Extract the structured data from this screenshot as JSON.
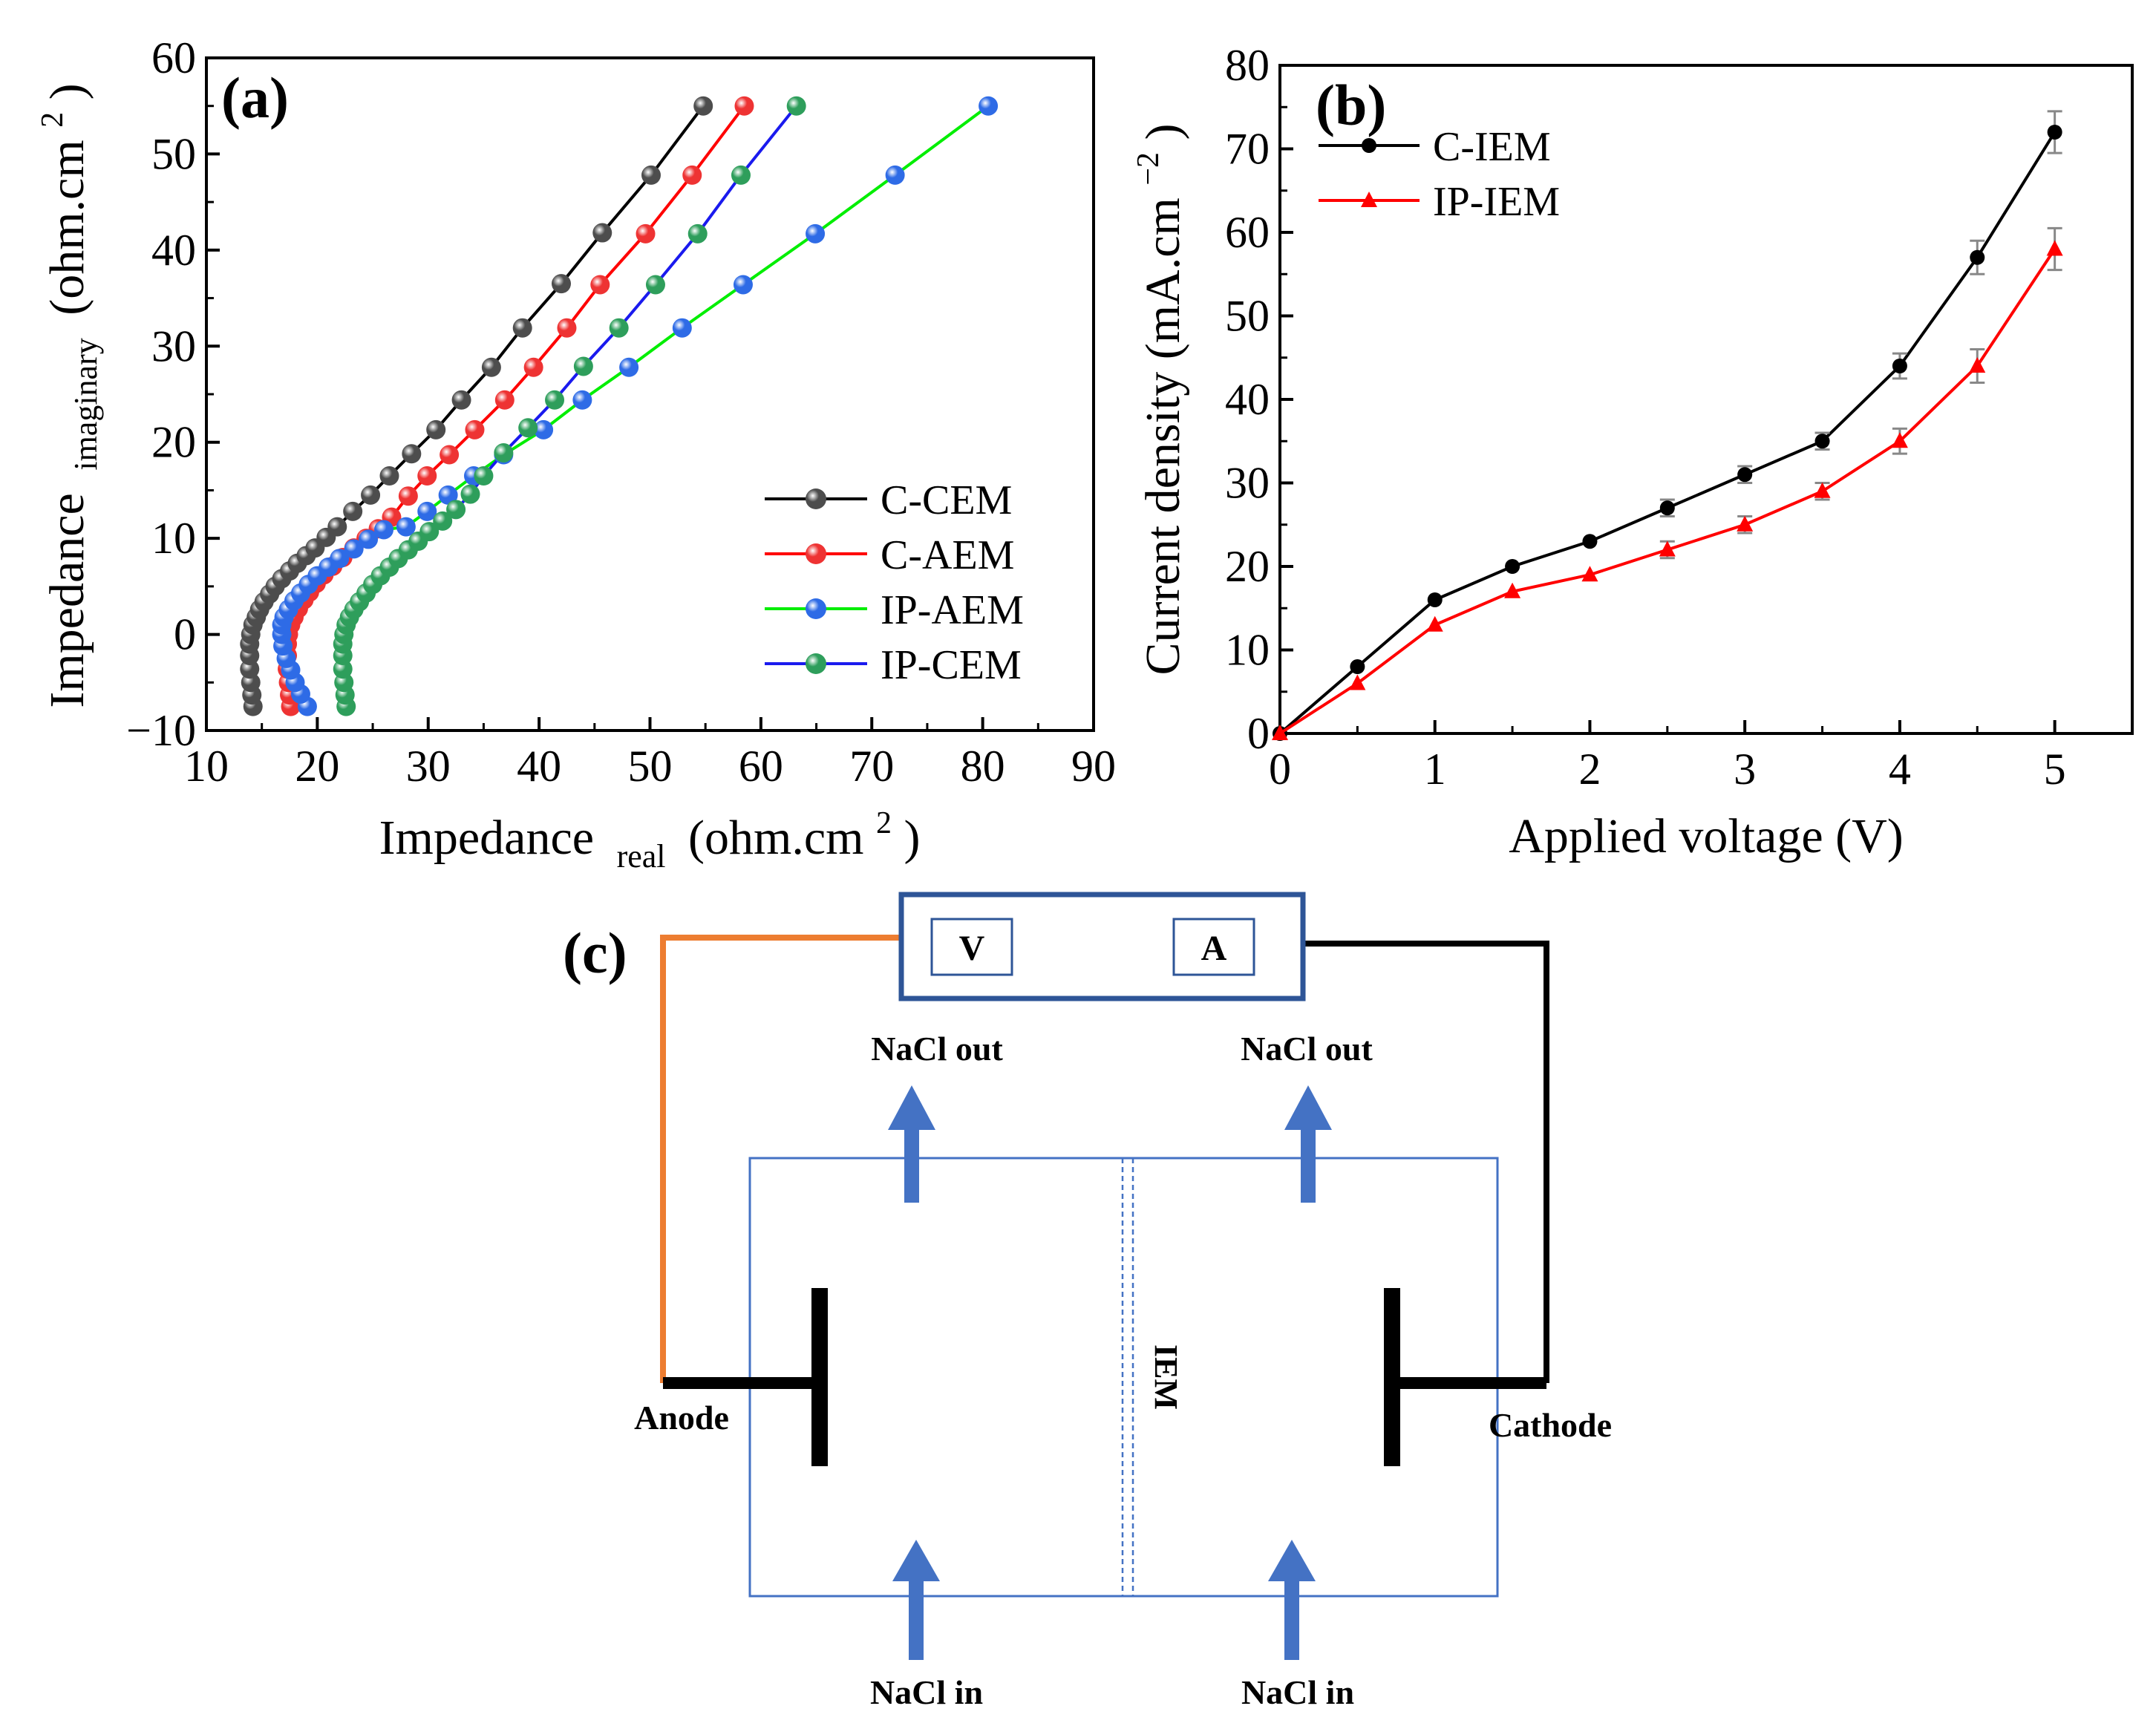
{
  "chart_data": [
    {
      "panel": "(a)",
      "type": "scatter",
      "mode": "lines+markers",
      "xlabel_main": "Impedance",
      "xlabel_sub": "real",
      "xlabel_unit": "(ohm.cm",
      "xlabel_sup": "2",
      "xlabel_close": ")",
      "ylabel_main": "Impedance",
      "ylabel_sub": "imaginary",
      "ylabel_unit": "(ohm.cm",
      "ylabel_sup": "2",
      "ylabel_close": ")",
      "xlim": [
        10,
        90
      ],
      "ylim": [
        -10,
        60
      ],
      "xticks": [
        10,
        20,
        30,
        40,
        50,
        60,
        70,
        80,
        90
      ],
      "yticks": [
        -10,
        0,
        10,
        20,
        30,
        40,
        50,
        60
      ],
      "legend": "center-right",
      "series": [
        {
          "name": "C-CEM",
          "line": "#000000",
          "marker": "#4d4d4d",
          "x": [
            14.2,
            14.1,
            14.0,
            13.9,
            13.9,
            13.9,
            14.0,
            14.2,
            14.5,
            14.8,
            15.2,
            15.7,
            16.2,
            16.8,
            17.5,
            18.2,
            19.0,
            19.8,
            20.8,
            21.8,
            23.2,
            24.8,
            26.5,
            28.5,
            30.7,
            33.0,
            35.7,
            38.5,
            42.0,
            45.7,
            50.1,
            54.8
          ],
          "y": [
            -7.5,
            -6.3,
            -5.0,
            -3.6,
            -2.2,
            -1.0,
            0.0,
            1.0,
            1.8,
            2.6,
            3.4,
            4.2,
            5.0,
            5.8,
            6.6,
            7.4,
            8.2,
            9.0,
            10.1,
            11.2,
            12.8,
            14.5,
            16.5,
            18.8,
            21.3,
            24.4,
            27.8,
            31.9,
            36.5,
            41.8,
            47.8,
            55.0
          ]
        },
        {
          "name": "C-AEM",
          "line": "#ff0000",
          "marker": "#ee3333",
          "x": [
            17.6,
            17.5,
            17.4,
            17.3,
            17.3,
            17.3,
            17.4,
            17.6,
            17.9,
            18.3,
            18.8,
            19.3,
            19.9,
            20.6,
            21.4,
            22.3,
            23.3,
            24.4,
            25.5,
            26.7,
            28.2,
            29.9,
            31.9,
            34.2,
            36.9,
            39.5,
            42.5,
            45.5,
            49.6,
            53.8,
            58.5
          ],
          "y": [
            -7.5,
            -6.3,
            -5.0,
            -3.6,
            -2.2,
            -1.0,
            0.0,
            1.0,
            1.8,
            2.7,
            3.6,
            4.4,
            5.3,
            6.2,
            7.1,
            8.0,
            9.0,
            10.0,
            11.0,
            12.2,
            14.4,
            16.5,
            18.7,
            21.3,
            24.4,
            27.8,
            31.9,
            36.4,
            41.7,
            47.8,
            55.0
          ]
        },
        {
          "name": "IP-AEM",
          "line": "#00ee00",
          "marker": "#2e6be6",
          "x": [
            19.1,
            18.5,
            18.0,
            17.6,
            17.2,
            16.9,
            16.8,
            16.8,
            17.0,
            17.4,
            17.9,
            18.5,
            19.2,
            20.0,
            21.0,
            22.0,
            23.3,
            24.6,
            26.0,
            28.0,
            29.9,
            31.8,
            34.1,
            36.8,
            40.4,
            43.9,
            48.1,
            52.9,
            58.4,
            64.9,
            72.1,
            80.5
          ],
          "y": [
            -7.5,
            -6.2,
            -5.0,
            -3.7,
            -2.5,
            -1.2,
            0.0,
            1.0,
            1.8,
            2.6,
            3.5,
            4.3,
            5.2,
            6.1,
            7.0,
            7.9,
            8.9,
            9.9,
            10.9,
            11.2,
            12.8,
            14.5,
            16.5,
            18.7,
            21.3,
            24.4,
            27.8,
            31.9,
            36.4,
            41.7,
            47.8,
            55.0
          ]
        },
        {
          "name": "IP-CEM",
          "line": "#1a1aee",
          "marker": "#2e9e5b",
          "x": [
            22.6,
            22.5,
            22.4,
            22.3,
            22.3,
            22.3,
            22.4,
            22.6,
            22.9,
            23.3,
            23.8,
            24.4,
            25.0,
            25.7,
            26.5,
            27.3,
            28.2,
            29.1,
            30.1,
            31.3,
            32.5,
            33.8,
            35.0,
            36.8,
            39.0,
            41.4,
            44.0,
            47.2,
            50.5,
            54.3,
            58.2,
            63.2
          ],
          "y": [
            -7.5,
            -6.3,
            -5.0,
            -3.6,
            -2.2,
            -1.0,
            0.0,
            1.0,
            1.8,
            2.6,
            3.4,
            4.3,
            5.2,
            6.1,
            7.0,
            7.9,
            8.8,
            9.7,
            10.7,
            11.8,
            13.0,
            14.6,
            16.5,
            18.9,
            21.5,
            24.4,
            27.9,
            31.9,
            36.4,
            41.7,
            47.8,
            55.0
          ]
        }
      ]
    },
    {
      "panel": "(b)",
      "type": "line",
      "xlabel": "Applied voltage (V)",
      "ylabel_main": "Current density (mA.cm",
      "ylabel_sup": "−2",
      "ylabel_close": ")",
      "xlim": [
        0,
        5.5
      ],
      "ylim": [
        0,
        80
      ],
      "xticks": [
        0,
        1,
        2,
        3,
        4,
        5
      ],
      "yticks": [
        0,
        10,
        20,
        30,
        40,
        50,
        60,
        70,
        80
      ],
      "legend": "top-left",
      "series": [
        {
          "name": "C-IEM",
          "color": "#000000",
          "marker": "circle",
          "x": [
            0,
            0.5,
            1,
            1.5,
            2,
            2.5,
            3,
            3.5,
            4,
            4.5,
            5
          ],
          "y": [
            0,
            8,
            16,
            20,
            23,
            27,
            31,
            35,
            44,
            57,
            72
          ],
          "err": [
            0,
            0,
            0,
            0,
            0,
            1.0,
            1.0,
            1.0,
            1.5,
            2.0,
            2.5
          ]
        },
        {
          "name": "IP-IEM",
          "color": "#ff0000",
          "marker": "triangle",
          "x": [
            0,
            0.5,
            1,
            1.5,
            2,
            2.5,
            3,
            3.5,
            4,
            4.5,
            5
          ],
          "y": [
            0,
            6,
            13,
            17,
            19,
            22,
            25,
            29,
            35,
            44,
            58
          ],
          "err": [
            0,
            0,
            0,
            0,
            0,
            1.0,
            1.0,
            1.0,
            1.5,
            2.0,
            2.5
          ]
        }
      ]
    }
  ],
  "diagram": {
    "panel": "(c)",
    "meter_v": "V",
    "meter_a": "A",
    "nacl_out": "NaCl out",
    "nacl_in": "NaCl in",
    "anode": "Anode",
    "cathode": "Cathode",
    "membrane": "IEM",
    "colors": {
      "box": "#2e5597",
      "cell": "#4472c4",
      "arrow": "#4472c4",
      "wire_anode": "#ed7d31",
      "wire_cathode": "#000000"
    }
  }
}
